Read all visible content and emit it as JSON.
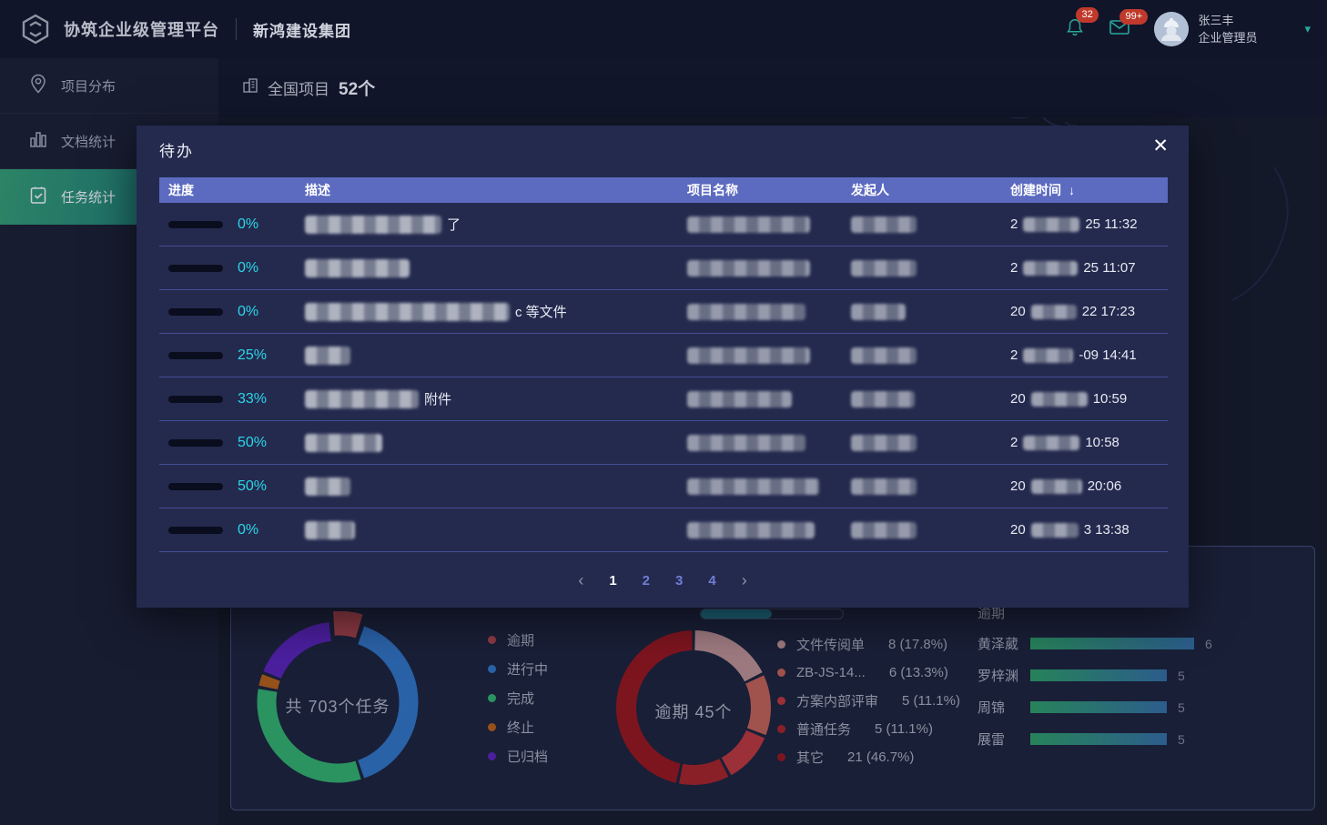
{
  "header": {
    "platform_title": "协筑企业级管理平台",
    "company_name": "新鸿建设集团",
    "notifications": {
      "bell_badge": "32",
      "mail_badge": "99+"
    },
    "user": {
      "name": "张三丰",
      "role": "企业管理员"
    }
  },
  "sidebar": {
    "items": [
      {
        "id": "project-distribution",
        "label": "项目分布",
        "icon": "location-pin-icon",
        "active": false
      },
      {
        "id": "document-stats",
        "label": "文档统计",
        "icon": "bar-chart-icon",
        "active": false
      },
      {
        "id": "task-stats",
        "label": "任务统计",
        "icon": "clipboard-check-icon",
        "active": true
      }
    ]
  },
  "map_header": {
    "label": "全国项目",
    "count": "52个"
  },
  "icons": {
    "close": "✕",
    "sort_desc": "↓",
    "page_prev": "‹",
    "page_next": "›",
    "chevron_down": "▾"
  },
  "modal": {
    "title": "待办",
    "columns": [
      {
        "key": "progress",
        "label": "进度",
        "sortable": false
      },
      {
        "key": "desc",
        "label": "描述",
        "sortable": false
      },
      {
        "key": "project",
        "label": "项目名称",
        "sortable": false
      },
      {
        "key": "initiator",
        "label": "发起人",
        "sortable": false
      },
      {
        "key": "created",
        "label": "创建时间",
        "sortable": true
      }
    ],
    "rows": [
      {
        "percent": 0,
        "percent_label": "0%",
        "desc": {
          "blur_w": 150,
          "suffix": "了"
        },
        "project": {
          "blur_w": 135
        },
        "initiator": {
          "blur_w": 72
        },
        "created": {
          "prefix": "2",
          "blur_w": 62,
          "suffix": "25 11:32"
        }
      },
      {
        "percent": 0,
        "percent_label": "0%",
        "desc": {
          "blur_w": 115,
          "suffix": ""
        },
        "project": {
          "blur_w": 135
        },
        "initiator": {
          "blur_w": 72
        },
        "created": {
          "prefix": "2",
          "blur_w": 60,
          "suffix": "25 11:07"
        }
      },
      {
        "percent": 0,
        "percent_label": "0%",
        "desc": {
          "blur_w": 225,
          "suffix": "c 等文件"
        },
        "project": {
          "blur_w": 130
        },
        "initiator": {
          "blur_w": 60
        },
        "created": {
          "prefix": "20",
          "blur_w": 50,
          "suffix": "22 17:23"
        }
      },
      {
        "percent": 25,
        "percent_label": "25%",
        "desc": {
          "blur_w": 50,
          "suffix": ""
        },
        "project": {
          "blur_w": 135
        },
        "initiator": {
          "blur_w": 72
        },
        "created": {
          "prefix": "2",
          "blur_w": 55,
          "suffix": "-09 14:41"
        }
      },
      {
        "percent": 33,
        "percent_label": "33%",
        "desc": {
          "blur_w": 125,
          "suffix": "附件"
        },
        "project": {
          "blur_w": 115
        },
        "initiator": {
          "blur_w": 70
        },
        "created": {
          "prefix": "20",
          "blur_w": 62,
          "suffix": "10:59"
        }
      },
      {
        "percent": 50,
        "percent_label": "50%",
        "desc": {
          "blur_w": 85,
          "suffix": ""
        },
        "project": {
          "blur_w": 130
        },
        "initiator": {
          "blur_w": 72
        },
        "created": {
          "prefix": "2",
          "blur_w": 62,
          "suffix": "10:58"
        }
      },
      {
        "percent": 50,
        "percent_label": "50%",
        "desc": {
          "blur_w": 50,
          "suffix": ""
        },
        "project": {
          "blur_w": 145
        },
        "initiator": {
          "blur_w": 72
        },
        "created": {
          "prefix": "20",
          "blur_w": 56,
          "suffix": "20:06"
        }
      },
      {
        "percent": 0,
        "percent_label": "0%",
        "desc": {
          "blur_w": 55,
          "suffix": ""
        },
        "project": {
          "blur_w": 140
        },
        "initiator": {
          "blur_w": 72
        },
        "created": {
          "prefix": "20",
          "blur_w": 52,
          "suffix": "3 13:38"
        }
      }
    ],
    "pagination": {
      "pages": [
        "1",
        "2",
        "3",
        "4"
      ],
      "active_page": "1"
    }
  },
  "chart_data": [
    {
      "type": "pie",
      "variant": "donut",
      "center_label": "共 703个任务",
      "total": 703,
      "legend_position": "right",
      "start_angle": -5,
      "exploded_index": 0,
      "series": [
        {
          "name": "逾期",
          "value": 45,
          "color": "#8e3a44"
        },
        {
          "name": "进行中",
          "value": 281,
          "color": "#2a62a8"
        },
        {
          "name": "完成",
          "value": 232,
          "color": "#2b9360"
        },
        {
          "name": "终止",
          "value": 21,
          "color": "#96511b"
        },
        {
          "name": "已归档",
          "value": 124,
          "color": "#4b1f9e"
        }
      ]
    },
    {
      "type": "pie",
      "variant": "donut",
      "center_label": "逾期 45个",
      "total": 45,
      "legend_position": "right",
      "start_angle": 0,
      "exploded_index": -1,
      "series": [
        {
          "name": "文件传阅单",
          "value": 8,
          "pct": "17.8%",
          "color": "#9d7a80"
        },
        {
          "name": "ZB-JS-14...",
          "value": 6,
          "pct": "13.3%",
          "color": "#a0524d"
        },
        {
          "name": "方案内部评审",
          "value": 5,
          "pct": "11.1%",
          "color": "#9c3038"
        },
        {
          "name": "普通任务",
          "value": 5,
          "pct": "11.1%",
          "color": "#8a2027"
        },
        {
          "name": "其它",
          "value": 21,
          "pct": "46.7%",
          "color": "#7d151f"
        }
      ]
    },
    {
      "type": "bar",
      "orientation": "horizontal",
      "title": "逾期",
      "categories": [
        "黄泽葳",
        "罗梓渊",
        "周锦",
        "展雷"
      ],
      "values": [
        6,
        5,
        5,
        5
      ],
      "xlim": [
        0,
        6.6
      ]
    }
  ]
}
